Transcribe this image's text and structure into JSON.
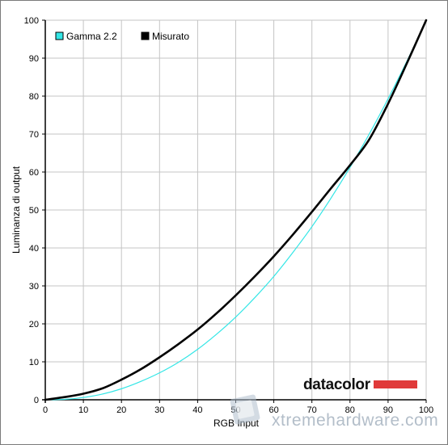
{
  "chart_data": {
    "type": "line",
    "xlabel": "RGB Input",
    "ylabel": "Luminanza di output",
    "xlim": [
      0,
      100
    ],
    "ylim": [
      0,
      100
    ],
    "x_ticks": [
      0,
      10,
      20,
      30,
      40,
      50,
      60,
      70,
      80,
      90,
      100
    ],
    "y_ticks": [
      0,
      10,
      20,
      30,
      40,
      50,
      60,
      70,
      80,
      90,
      100
    ],
    "grid": true,
    "legend_position": "top-left",
    "series": [
      {
        "name": "Gamma 2.2",
        "color": "#33e6e6",
        "x": [
          0,
          5,
          10,
          15,
          20,
          25,
          30,
          35,
          40,
          45,
          50,
          55,
          60,
          65,
          70,
          75,
          80,
          85,
          90,
          95,
          100
        ],
        "y": [
          0,
          0.1,
          0.6,
          1.5,
          2.9,
          4.8,
          7.1,
          9.9,
          13.3,
          17.3,
          21.8,
          26.9,
          32.5,
          38.8,
          45.6,
          53.1,
          61.2,
          69.9,
          79.3,
          89.3,
          100
        ]
      },
      {
        "name": "Misurato",
        "color": "#000000",
        "x": [
          0,
          5,
          10,
          15,
          20,
          25,
          30,
          35,
          40,
          45,
          50,
          55,
          60,
          65,
          70,
          75,
          80,
          85,
          90,
          95,
          100
        ],
        "y": [
          0,
          0.7,
          1.6,
          3.0,
          5.3,
          8.0,
          11.2,
          14.7,
          18.5,
          22.8,
          27.5,
          32.5,
          37.8,
          43.5,
          49.5,
          55.7,
          61.8,
          68.5,
          78.0,
          88.8,
          100
        ]
      }
    ]
  },
  "branding": {
    "logo_text": "datacolor",
    "logo_bar_color": "#e03a3a",
    "watermark_text": "xtremehardware.com"
  }
}
